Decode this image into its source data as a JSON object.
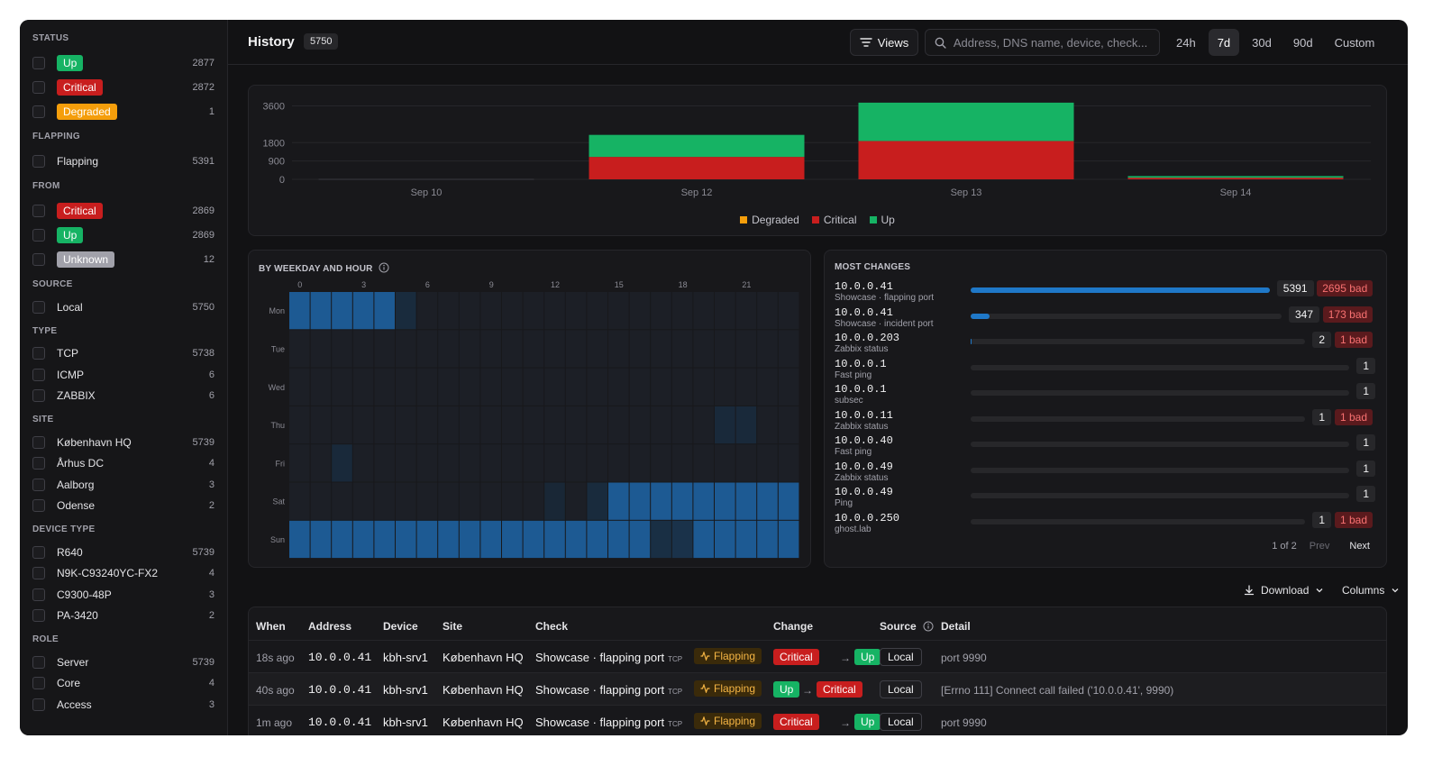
{
  "sidebar": {
    "status": {
      "title": "STATUS",
      "items": [
        {
          "label": "Up",
          "count": "2877"
        },
        {
          "label": "Critical",
          "count": "2872"
        },
        {
          "label": "Degraded",
          "count": "1"
        }
      ]
    },
    "flapping": {
      "title": "FLAPPING",
      "items": [
        {
          "label": "Flapping",
          "count": "5391"
        }
      ]
    },
    "from": {
      "title": "FROM",
      "items": [
        {
          "label": "Critical",
          "count": "2869"
        },
        {
          "label": "Up",
          "count": "2869"
        },
        {
          "label": "Unknown",
          "count": "12"
        }
      ]
    },
    "source": {
      "title": "SOURCE",
      "items": [
        {
          "label": "Local",
          "count": "5750"
        }
      ]
    },
    "type": {
      "title": "TYPE",
      "items": [
        {
          "label": "TCP",
          "count": "5738"
        },
        {
          "label": "ICMP",
          "count": "6"
        },
        {
          "label": "ZABBIX",
          "count": "6"
        }
      ]
    },
    "site": {
      "title": "SITE",
      "items": [
        {
          "label": "København HQ",
          "count": "5739"
        },
        {
          "label": "Århus DC",
          "count": "4"
        },
        {
          "label": "Aalborg",
          "count": "3"
        },
        {
          "label": "Odense",
          "count": "2"
        }
      ]
    },
    "device_type": {
      "title": "DEVICE TYPE",
      "items": [
        {
          "label": "R640",
          "count": "5739"
        },
        {
          "label": "N9K-C93240YC-FX2",
          "count": "4"
        },
        {
          "label": "C9300-48P",
          "count": "3"
        },
        {
          "label": "PA-3420",
          "count": "2"
        }
      ]
    },
    "role": {
      "title": "ROLE",
      "items": [
        {
          "label": "Server",
          "count": "5739"
        },
        {
          "label": "Core",
          "count": "4"
        },
        {
          "label": "Access",
          "count": "3"
        }
      ]
    }
  },
  "header": {
    "title": "History",
    "count": "5750",
    "views_label": "Views",
    "search_placeholder": "Address, DNS name, device, check...",
    "ranges": [
      "24h",
      "7d",
      "30d",
      "90d",
      "Custom"
    ],
    "active_range": "7d"
  },
  "colors": {
    "up": "#16b364",
    "critical": "#c81e1e",
    "degraded": "#f59e0b",
    "heat": "#1f78c8"
  },
  "chart_data": [
    {
      "type": "bar",
      "stacked": true,
      "categories": [
        "Sep 10",
        "Sep 12",
        "Sep 13",
        "Sep 14"
      ],
      "series": [
        {
          "name": "Degraded",
          "values": [
            0,
            0,
            1,
            0
          ]
        },
        {
          "name": "Critical",
          "values": [
            0,
            1100,
            1880,
            80
          ]
        },
        {
          "name": "Up",
          "values": [
            0,
            1080,
            1880,
            80
          ]
        }
      ],
      "yticks": [
        "3600",
        "1800",
        "900",
        "0"
      ],
      "ylim": [
        0,
        3800
      ],
      "grid": true,
      "legend": "bottom"
    },
    {
      "type": "heatmap",
      "title": "BY WEEKDAY AND HOUR",
      "x_ticks": [
        "0",
        "3",
        "6",
        "9",
        "12",
        "15",
        "18",
        "21"
      ],
      "rows": [
        "Mon",
        "Tue",
        "Wed",
        "Thu",
        "Fri",
        "Sat",
        "Sun"
      ],
      "values": [
        [
          0.85,
          0.85,
          0.85,
          0.85,
          0.85,
          0.2,
          0,
          0,
          0,
          0,
          0,
          0,
          0,
          0,
          0,
          0,
          0,
          0,
          0,
          0,
          0,
          0,
          0,
          0
        ],
        [
          0,
          0,
          0,
          0,
          0,
          0,
          0,
          0,
          0,
          0,
          0,
          0,
          0,
          0,
          0,
          0,
          0,
          0,
          0,
          0,
          0,
          0,
          0,
          0
        ],
        [
          0,
          0,
          0,
          0,
          0,
          0,
          0,
          0,
          0,
          0,
          0,
          0,
          0,
          0,
          0,
          0,
          0,
          0,
          0,
          0,
          0,
          0,
          0,
          0
        ],
        [
          0,
          0,
          0,
          0,
          0,
          0,
          0,
          0,
          0,
          0,
          0,
          0,
          0,
          0,
          0,
          0,
          0,
          0,
          0,
          0,
          0.15,
          0.15,
          0,
          0
        ],
        [
          0,
          0,
          0.15,
          0,
          0,
          0,
          0,
          0,
          0,
          0,
          0,
          0,
          0,
          0,
          0,
          0,
          0,
          0,
          0,
          0,
          0,
          0,
          0,
          0
        ],
        [
          0,
          0,
          0,
          0,
          0,
          0,
          0,
          0,
          0,
          0,
          0,
          0,
          0.1,
          0,
          0.2,
          0.85,
          0.85,
          0.85,
          0.85,
          0.85,
          0.85,
          0.85,
          0.85,
          0.85
        ],
        [
          0.85,
          0.85,
          0.85,
          0.85,
          0.85,
          0.85,
          0.85,
          0.85,
          0.85,
          0.85,
          0.85,
          0.85,
          0.85,
          0.85,
          0.85,
          0.85,
          0.85,
          0.3,
          0.4,
          0.85,
          0.85,
          0.85,
          0.85,
          0.85
        ]
      ]
    }
  ],
  "most_changes": {
    "title": "MOST CHANGES",
    "rows": [
      {
        "address": "10.0.0.41",
        "check": "Showcase · flapping port",
        "count": "5391",
        "bad": "2695 bad",
        "value": 5391
      },
      {
        "address": "10.0.0.41",
        "check": "Showcase · incident port",
        "count": "347",
        "bad": "173 bad",
        "value": 347
      },
      {
        "address": "10.0.0.203",
        "check": "Zabbix status",
        "count": "2",
        "bad": "1 bad",
        "value": 2
      },
      {
        "address": "10.0.0.1",
        "check": "Fast ping",
        "count": "1",
        "bad": "",
        "value": 1
      },
      {
        "address": "10.0.0.1",
        "check": "subsec",
        "count": "1",
        "bad": "",
        "value": 1
      },
      {
        "address": "10.0.0.11",
        "check": "Zabbix status",
        "count": "1",
        "bad": "1 bad",
        "value": 1
      },
      {
        "address": "10.0.0.40",
        "check": "Fast ping",
        "count": "1",
        "bad": "",
        "value": 1
      },
      {
        "address": "10.0.0.49",
        "check": "Zabbix status",
        "count": "1",
        "bad": "",
        "value": 1
      },
      {
        "address": "10.0.0.49",
        "check": "Ping",
        "count": "1",
        "bad": "",
        "value": 1
      },
      {
        "address": "10.0.0.250",
        "check": "ghost.lab",
        "count": "1",
        "bad": "1 bad",
        "value": 1
      }
    ],
    "pagination": {
      "page": "1 of 2",
      "prev": "Prev",
      "next": "Next"
    }
  },
  "toolbar": {
    "download": "Download",
    "columns": "Columns"
  },
  "table": {
    "columns": [
      "When",
      "Address",
      "Device",
      "Site",
      "Check",
      "Change",
      "Source",
      "Detail"
    ],
    "rows": [
      {
        "when": "18s ago",
        "address": "10.0.0.41",
        "device": "kbh-srv1",
        "site": "København HQ",
        "check": "Showcase · flapping port",
        "proto": "TCP",
        "flap": "Flapping",
        "from": "Critical",
        "to": "Up",
        "source": "Local",
        "detail": "port 9990"
      },
      {
        "when": "40s ago",
        "address": "10.0.0.41",
        "device": "kbh-srv1",
        "site": "København HQ",
        "check": "Showcase · flapping port",
        "proto": "TCP",
        "flap": "Flapping",
        "from": "Up",
        "to": "Critical",
        "source": "Local",
        "detail": "[Errno 111] Connect call failed ('10.0.0.41', 9990)"
      },
      {
        "when": "1m ago",
        "address": "10.0.0.41",
        "device": "kbh-srv1",
        "site": "København HQ",
        "check": "Showcase · flapping port",
        "proto": "TCP",
        "flap": "Flapping",
        "from": "Critical",
        "to": "Up",
        "source": "Local",
        "detail": "port 9990"
      }
    ]
  }
}
